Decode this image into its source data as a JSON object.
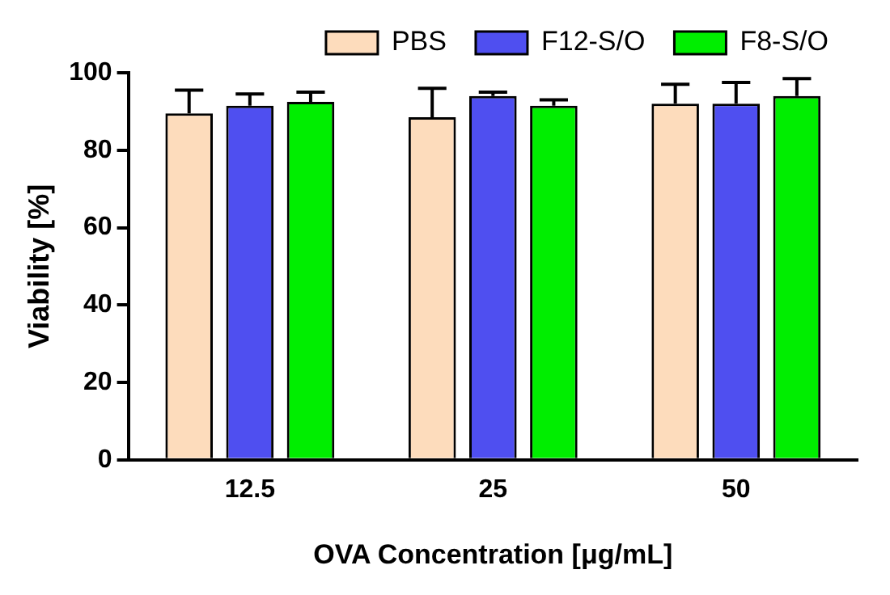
{
  "chart_data": {
    "type": "bar",
    "xlabel": "OVA Concentration [μg/mL]",
    "ylabel": "Viability [%]",
    "categories": [
      "12.5",
      "25",
      "50"
    ],
    "series": [
      {
        "name": "PBS",
        "color": "#fddcbc",
        "values": [
          89.5,
          88.5,
          92
        ],
        "errors": [
          [
            89.5,
            95.5
          ],
          [
            88.5,
            96
          ],
          [
            92,
            97
          ]
        ]
      },
      {
        "name": "F12-S/O",
        "color": "#4f4ff0",
        "values": [
          91.5,
          94,
          92
        ],
        "errors": [
          [
            91.5,
            94.5
          ],
          [
            94,
            95
          ],
          [
            92,
            97.5
          ]
        ]
      },
      {
        "name": "F8-S/O",
        "color": "#00ee00",
        "values": [
          92.5,
          91.5,
          94
        ],
        "errors": [
          [
            92.5,
            95
          ],
          [
            91.5,
            93
          ],
          [
            94,
            98.5
          ]
        ]
      }
    ],
    "ylim": [
      0,
      100
    ],
    "yticks": [
      0,
      20,
      40,
      60,
      80,
      100
    ],
    "grid": false,
    "legend": "top right"
  }
}
